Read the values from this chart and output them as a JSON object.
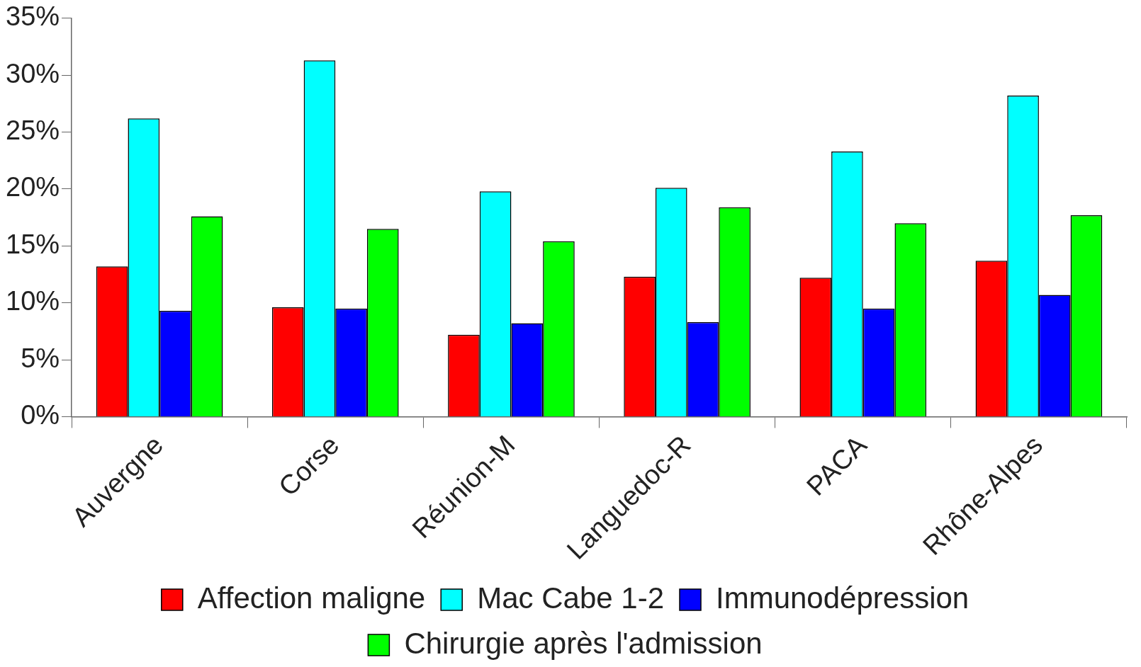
{
  "chart_data": {
    "type": "bar",
    "categories": [
      "Auvergne",
      "Corse",
      "Réunion-M",
      "Languedoc-R",
      "PACA",
      "Rhône-Alpes"
    ],
    "series": [
      {
        "name": "Affection maligne",
        "color": "#ff0000",
        "values": [
          13.2,
          9.6,
          7.2,
          12.3,
          12.2,
          13.7
        ]
      },
      {
        "name": "Mac Cabe 1-2",
        "color": "#00ffff",
        "values": [
          26.2,
          31.3,
          19.8,
          20.1,
          23.3,
          28.2
        ]
      },
      {
        "name": "Immunodépression",
        "color": "#0000ff",
        "values": [
          9.3,
          9.5,
          8.2,
          8.3,
          9.5,
          10.7
        ]
      },
      {
        "name": "Chirurgie après l'admission",
        "color": "#00ff00",
        "values": [
          17.6,
          16.5,
          15.4,
          18.4,
          17.0,
          17.7
        ]
      }
    ],
    "ylim": [
      0,
      35
    ],
    "yticks": [
      {
        "value": 0,
        "label": "0%"
      },
      {
        "value": 5,
        "label": "5%"
      },
      {
        "value": 10,
        "label": "10%"
      },
      {
        "value": 15,
        "label": "15%"
      },
      {
        "value": 20,
        "label": "20%"
      },
      {
        "value": 25,
        "label": "25%"
      },
      {
        "value": 30,
        "label": "30%"
      },
      {
        "value": 35,
        "label": "35%"
      }
    ],
    "grid": false,
    "legend": "bottom"
  }
}
